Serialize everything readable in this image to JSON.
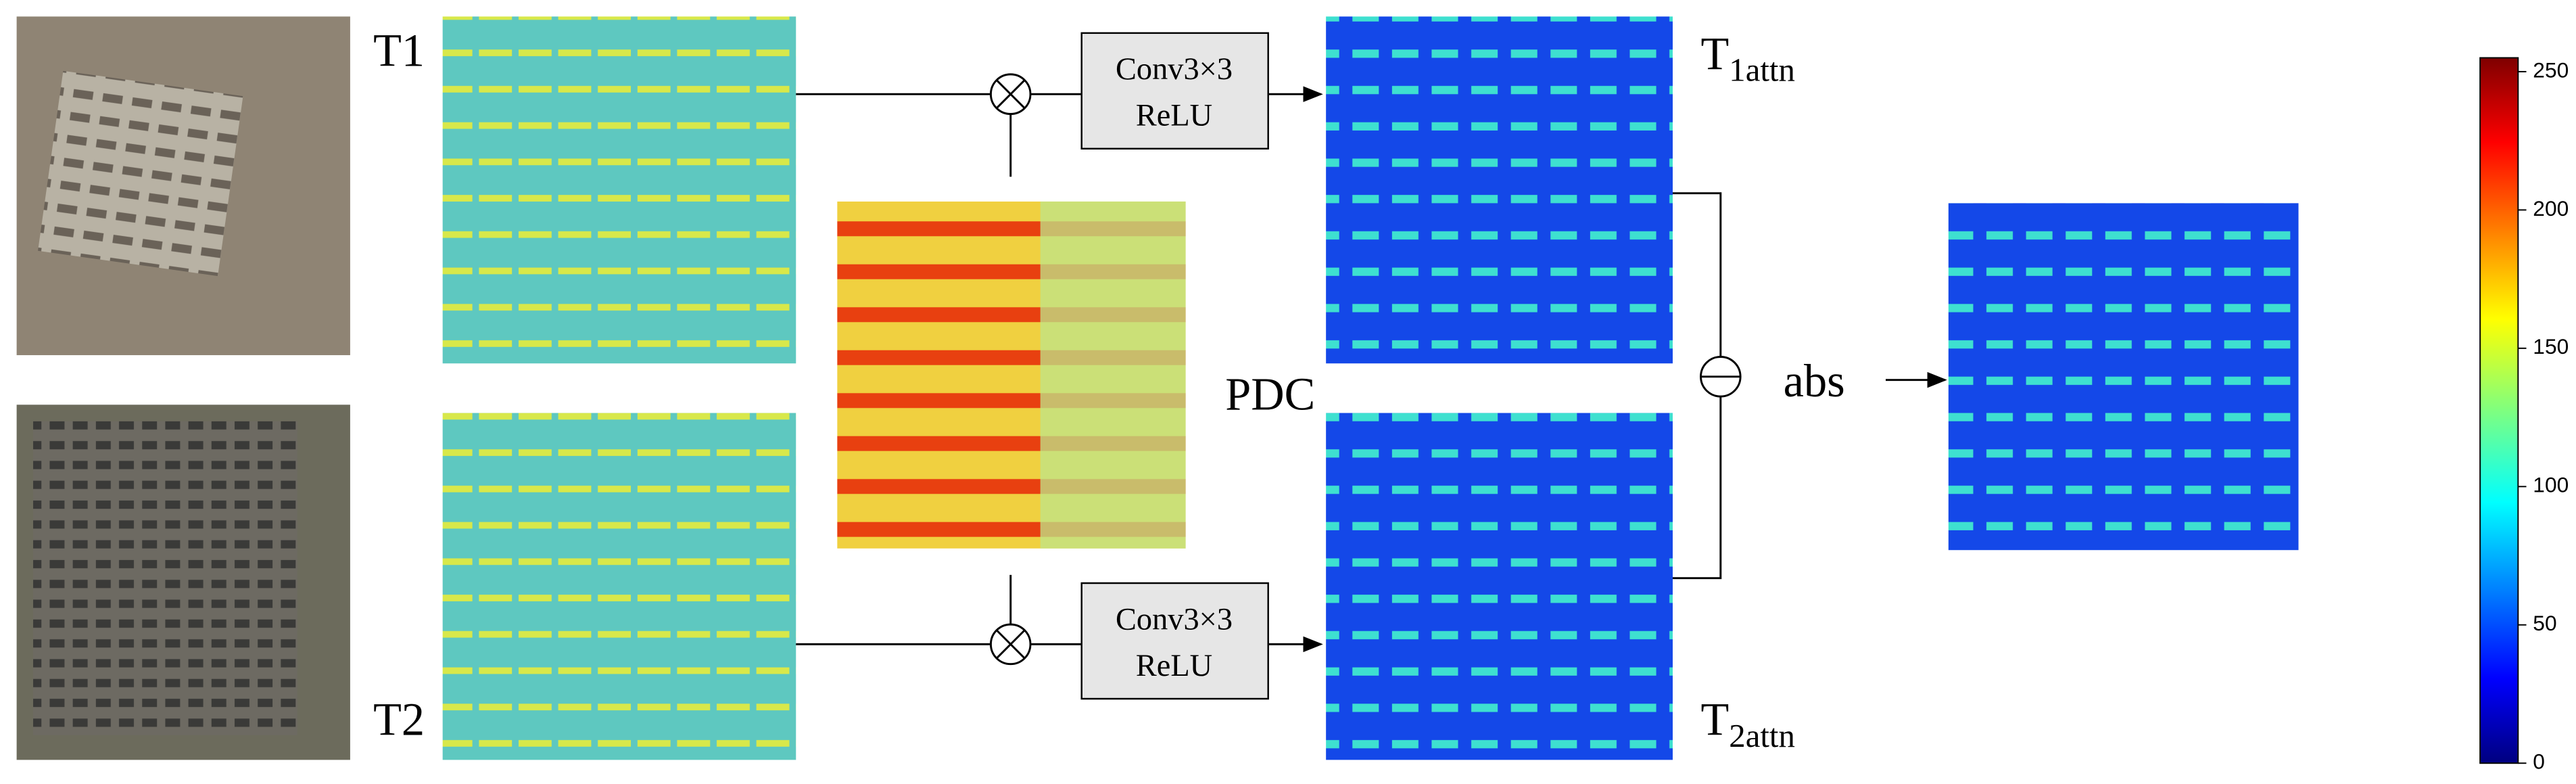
{
  "inputs": {
    "t1": "T1",
    "t2": "T2"
  },
  "pdc": "PDC",
  "blocks": [
    {
      "line1": "Conv3×3",
      "line2": "ReLU"
    },
    {
      "line1": "Conv3×3",
      "line2": "ReLU"
    }
  ],
  "outputs": {
    "t1attn": {
      "base": "T",
      "sub": "1attn"
    },
    "t2attn": {
      "base": "T",
      "sub": "2attn"
    }
  },
  "abs": "abs",
  "colorbar": {
    "lim": [
      0,
      255
    ],
    "ticks": [
      0,
      50,
      100,
      150,
      200,
      250
    ]
  }
}
